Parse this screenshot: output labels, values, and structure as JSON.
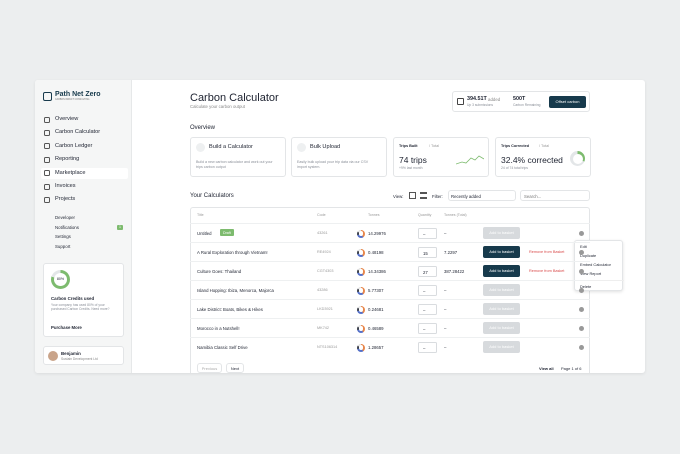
{
  "brand": {
    "name": "Path Net Zero",
    "tagline": "CARBON IMPACT CONSULTING"
  },
  "nav": [
    "Overview",
    "Carbon Calculator",
    "Carbon Ledger",
    "Reporting",
    "Marketplace",
    "Invoices",
    "Projects"
  ],
  "subnav": [
    {
      "label": "Developer"
    },
    {
      "label": "Notifications",
      "badge": "1"
    },
    {
      "label": "Settings"
    },
    {
      "label": "Support"
    }
  ],
  "credits": {
    "percent": "80%",
    "title": "Carbon Credits used",
    "text": "Your company has used 80% of your purchased Carbon Credits. Need more?",
    "link": "Purchase More"
  },
  "user": {
    "name": "Benjamin",
    "org": "Sustain Development Ltd"
  },
  "header": {
    "title": "Carbon Calculator",
    "subtitle": "Calculate your carbon output"
  },
  "stats": {
    "added": "394.51T",
    "added_label": "added",
    "added_sub": "Up 3 submissions",
    "remaining": "500T",
    "remaining_sub": "Carbon Remaining",
    "button": "Offset carbon"
  },
  "overview": {
    "title": "Overview",
    "actions": [
      {
        "title": "Build a Calculator",
        "text": "Build a new carbon calculator and work out your trips carbon output"
      },
      {
        "title": "Bulk Upload",
        "text": "Easily bulk upload your trip data via our CSV import system."
      }
    ],
    "metrics": [
      {
        "label": "Trips Built",
        "total": "/ Total",
        "value": "74 trips",
        "sub": "+9% last month"
      },
      {
        "label": "Trips Corrected",
        "total": "/ Total",
        "value": "32.4% corrected",
        "sub": "24 of 74 total trips"
      }
    ]
  },
  "calculators": {
    "title": "Your Calculators",
    "view": "View:",
    "filter": "Filter:",
    "filter_value": "Recently added",
    "search": "Search...",
    "columns": [
      "Title",
      "Code",
      "Tonnes",
      "Quantity",
      "Tonnes (Total)"
    ],
    "rows": [
      {
        "title": "Untitled",
        "tag": "Draft",
        "code": "43261",
        "tonnes": "14.29976",
        "quantity": "–",
        "total": "–",
        "button": "Add to basket"
      },
      {
        "title": "A Rural Exploration through Vietnam!",
        "code": "RE4924",
        "tonnes": "0.48198",
        "quantity": "15",
        "total": "7.2297",
        "button": "Add to basket",
        "remove": "Remove from Basket"
      },
      {
        "title": "Culture Goes: Thailand",
        "code": "CGT4303",
        "tonnes": "14.34386",
        "quantity": "27",
        "total": "387.28422",
        "button": "Add to basket",
        "remove": "Remove from Basket"
      },
      {
        "title": "Island Hopping: Ibiza, Menorca, Majorca",
        "code": "43286",
        "tonnes": "5.77307",
        "quantity": "–",
        "total": "–",
        "button": "Add to basket"
      },
      {
        "title": "Lake District: Boats, Bikes & Hikes",
        "code": "LKD3921",
        "tonnes": "0.24681",
        "quantity": "–",
        "total": "–",
        "button": "Add to basket"
      },
      {
        "title": "Morocco in a Nutshell!",
        "code": "MK742",
        "tonnes": "0.46589",
        "quantity": "–",
        "total": "–",
        "button": "Add to basket"
      },
      {
        "title": "Namibia Classic Self Drive",
        "code": "NTS106314",
        "tonnes": "1.28657",
        "quantity": "–",
        "total": "–",
        "button": "Add to basket"
      }
    ],
    "menu": [
      "Edit",
      "Duplicate",
      "Embed Calculator",
      "View Report",
      "Delete"
    ],
    "prev": "Previous",
    "next": "Next",
    "view_all": "View all",
    "page": "Page 1 of 6"
  }
}
